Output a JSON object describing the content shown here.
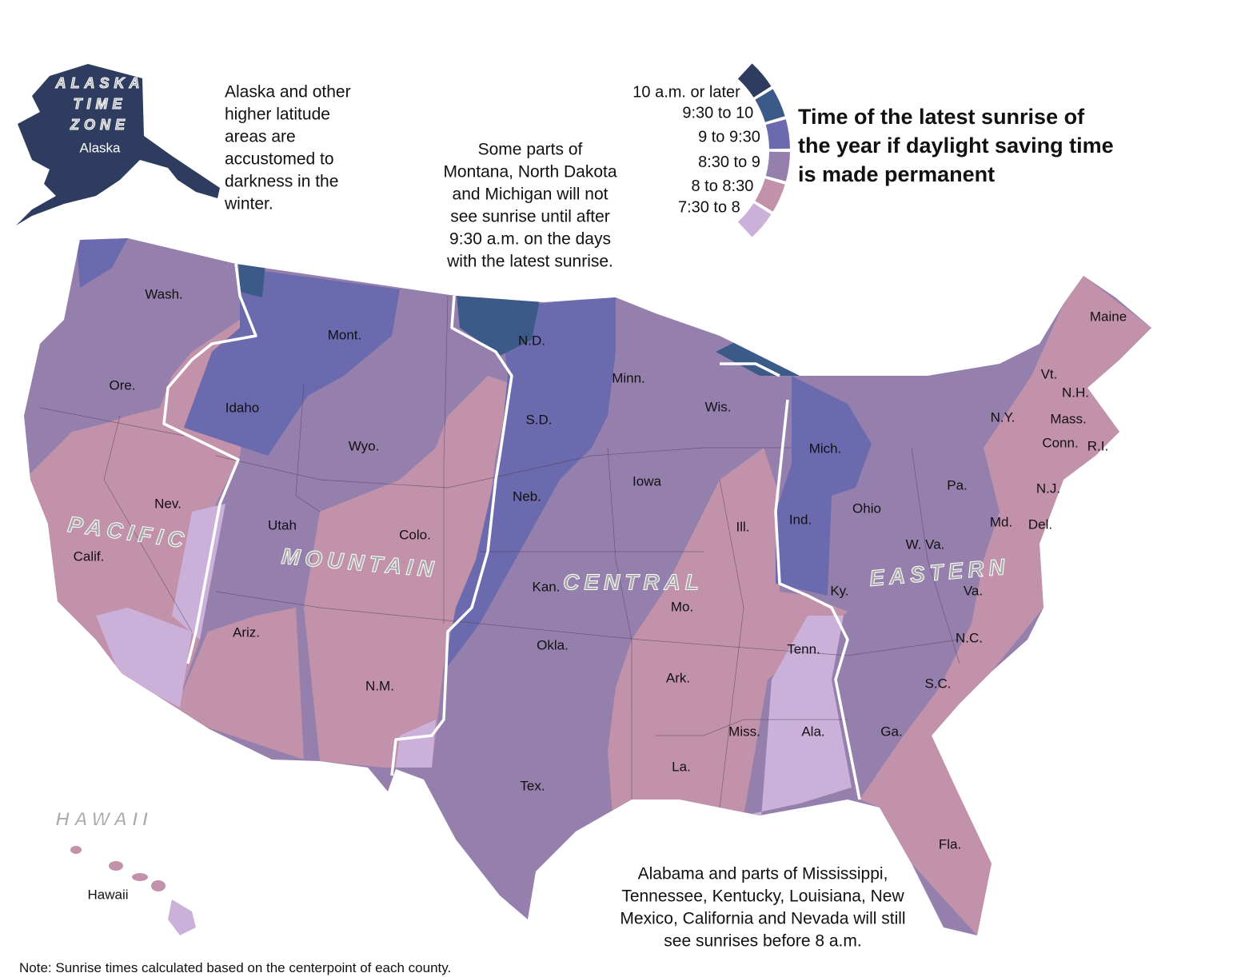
{
  "title": [
    "Time of the latest sunrise of",
    "the year if daylight saving time",
    "is made permanent"
  ],
  "legend": [
    {
      "label": "10 a.m. or later",
      "color": "#2e3d5f"
    },
    {
      "label": "9:30 to 10",
      "color": "#3c5a87"
    },
    {
      "label": "9 to 9:30",
      "color": "#6b6aae"
    },
    {
      "label": "8:30 to 9",
      "color": "#9580ad"
    },
    {
      "label": "8 to 8:30",
      "color": "#c292ab"
    },
    {
      "label": "7:30 to 8",
      "color": "#cbb0da"
    }
  ],
  "time_zones": {
    "alaska": [
      "ALASKA",
      "TIME",
      "ZONE"
    ],
    "pacific": "PACIFIC",
    "mountain": "MOUNTAIN",
    "central": "CENTRAL",
    "eastern": "EASTERN",
    "hawaii": "HAWAII"
  },
  "states": [
    "Alaska",
    "Hawaii",
    "Wash.",
    "Ore.",
    "Calif.",
    "Nev.",
    "Idaho",
    "Mont.",
    "Wyo.",
    "Utah",
    "Colo.",
    "Ariz.",
    "N.M.",
    "N.D.",
    "S.D.",
    "Neb.",
    "Kan.",
    "Okla.",
    "Tex.",
    "Minn.",
    "Iowa",
    "Mo.",
    "Ark.",
    "La.",
    "Wis.",
    "Ill.",
    "Mich.",
    "Ind.",
    "Ohio",
    "Ky.",
    "Tenn.",
    "Miss.",
    "Ala.",
    "Ga.",
    "Fla.",
    "S.C.",
    "N.C.",
    "Va.",
    "W. Va.",
    "Pa.",
    "N.Y.",
    "Md.",
    "Del.",
    "N.J.",
    "Conn.",
    "R.I.",
    "Mass.",
    "Vt.",
    "N.H.",
    "Maine"
  ],
  "annotations": {
    "alaska": [
      "Alaska and other",
      "higher latitude",
      "areas are",
      "accustomed to",
      "darkness in the",
      "winter."
    ],
    "north": [
      "Some parts of",
      "Montana, North Dakota",
      "and Michigan will not",
      "see sunrise until after",
      "9:30 a.m. on the days",
      "with the latest sunrise."
    ],
    "south": [
      "Alabama and parts of Mississippi,",
      "Tennessee, Kentucky, Louisiana, New",
      "Mexico, California and Nevada will still",
      "see sunrises before 8 a.m."
    ]
  },
  "note": "Note: Sunrise times calculated based on the centerpoint of each county."
}
